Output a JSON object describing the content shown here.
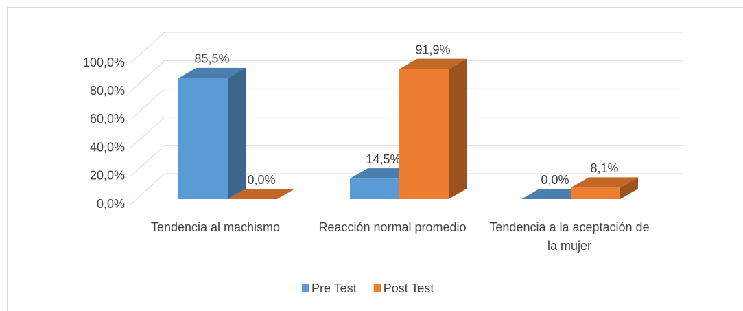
{
  "chart_data": {
    "type": "bar3d",
    "categories": [
      "Tendencia al machismo",
      "Reacción normal promedio",
      "Tendencia a la aceptación de la mujer"
    ],
    "series": [
      {
        "name": "Pre Test",
        "color": "#5b9bd5",
        "values": [
          85.5,
          14.5,
          0.0
        ],
        "value_labels": [
          "85,5%",
          "14,5%",
          "0,0%"
        ]
      },
      {
        "name": "Post Test",
        "color": "#ed7d31",
        "values": [
          0.0,
          91.9,
          8.1
        ],
        "value_labels": [
          "0,0%",
          "91,9%",
          "8,1%"
        ]
      }
    ],
    "ylim": [
      0,
      100
    ],
    "yticks": [
      {
        "value": 0,
        "label": "0,0%"
      },
      {
        "value": 20,
        "label": "20,0%"
      },
      {
        "value": 40,
        "label": "40,0%"
      },
      {
        "value": 60,
        "label": "60,0%"
      },
      {
        "value": 80,
        "label": "80,0%"
      },
      {
        "value": 100,
        "label": "100,0%"
      }
    ],
    "grid": true,
    "legend": "bottom"
  }
}
